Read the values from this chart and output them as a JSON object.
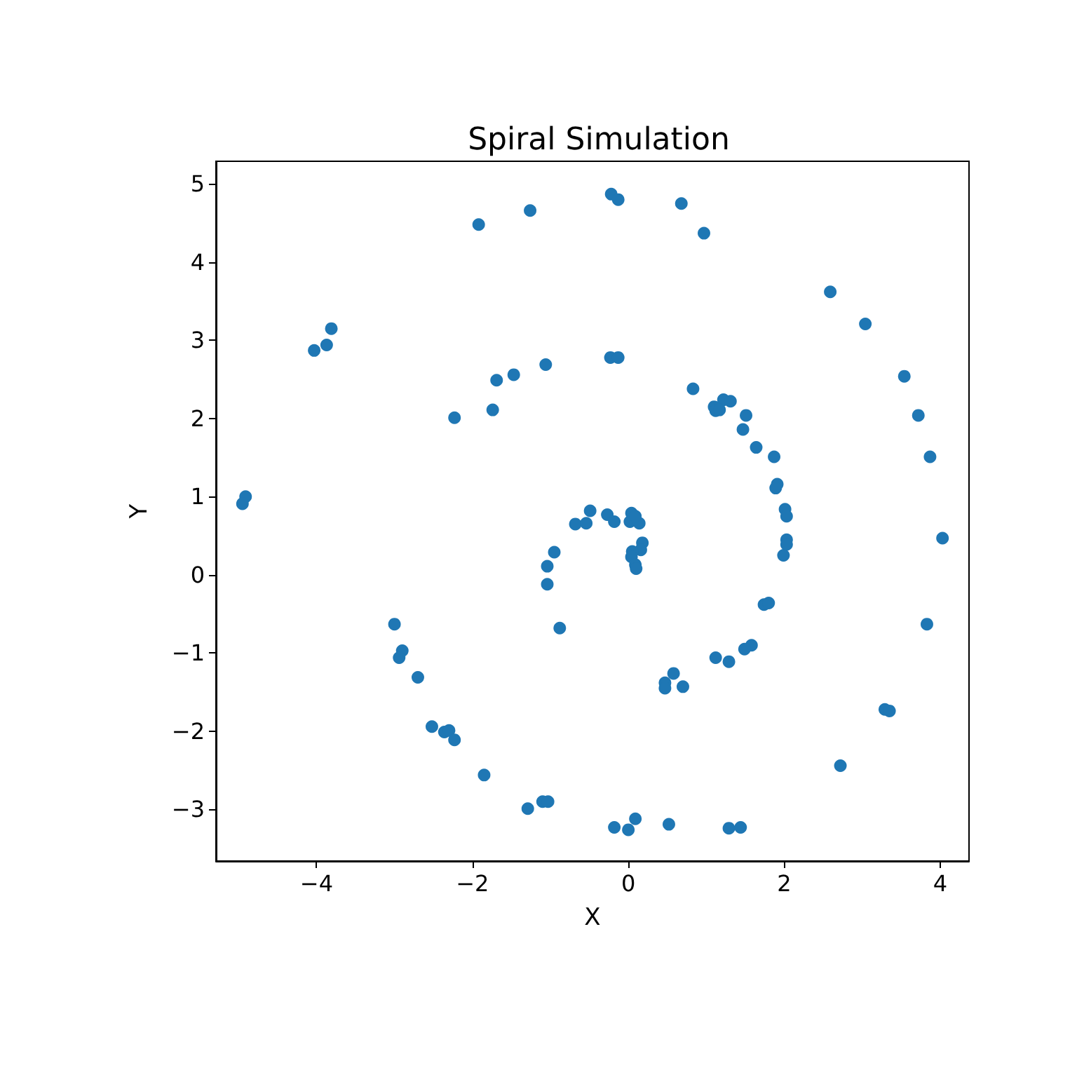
{
  "chart_data": {
    "type": "scatter",
    "title": "Spiral Simulation",
    "xlabel": "X",
    "ylabel": "Y",
    "xlim": [
      -5.29,
      4.37
    ],
    "ylim": [
      -3.66,
      5.29
    ],
    "xticks": [
      -4,
      -2,
      0,
      2,
      4
    ],
    "yticks": [
      -3,
      -2,
      -1,
      0,
      1,
      2,
      3,
      4,
      5
    ],
    "grid": false,
    "marker": "circle",
    "series": [
      {
        "color": "#1f77b4",
        "x": [
          -0.22,
          -0.13,
          -1.26,
          -1.92,
          0.68,
          0.97,
          2.59,
          3.04,
          3.54,
          3.72,
          3.87,
          4.03,
          3.83,
          3.29,
          3.35,
          2.72,
          -3.81,
          -3.87,
          -4.03,
          -4.91,
          -4.95,
          -3.0,
          -2.9,
          -2.94,
          -2.7,
          -2.52,
          -2.36,
          -2.3,
          -2.23,
          -1.85,
          -1.29,
          -1.1,
          -1.03,
          -0.18,
          0.0,
          0.09,
          0.52,
          1.29,
          1.44,
          -0.23,
          -0.13,
          -1.06,
          -1.47,
          -1.69,
          -1.74,
          -2.23,
          0.83,
          1.22,
          1.31,
          1.1,
          1.12,
          1.17,
          1.51,
          1.47,
          1.64,
          1.87,
          1.91,
          1.89,
          2.01,
          2.03,
          2.03,
          2.03,
          1.99,
          1.74,
          1.8,
          1.58,
          1.49,
          1.12,
          1.29,
          0.58,
          0.47,
          0.47,
          0.7,
          -0.88,
          -1.04,
          -1.04,
          -0.95,
          -0.68,
          -0.54,
          -0.49,
          -0.27,
          -0.18,
          0.04,
          0.02,
          0.14,
          0.09,
          0.18,
          0.16,
          0.05,
          0.04,
          0.09,
          0.1
        ],
        "values": [
          4.87,
          4.8,
          4.66,
          4.48,
          4.75,
          4.37,
          3.62,
          3.21,
          2.54,
          2.04,
          1.51,
          0.47,
          -0.63,
          -1.72,
          -1.74,
          -2.44,
          3.15,
          2.94,
          2.87,
          1.0,
          0.91,
          -0.63,
          -0.97,
          -1.06,
          -1.31,
          -1.94,
          -2.01,
          -1.99,
          -2.11,
          -2.56,
          -2.99,
          -2.9,
          -2.9,
          -3.23,
          -3.26,
          -3.12,
          -3.19,
          -3.24,
          -3.23,
          2.78,
          2.78,
          2.69,
          2.56,
          2.49,
          2.11,
          2.01,
          2.38,
          2.24,
          2.22,
          2.15,
          2.1,
          2.11,
          2.04,
          1.86,
          1.63,
          1.51,
          1.16,
          1.11,
          0.84,
          0.75,
          0.45,
          0.39,
          0.25,
          -0.38,
          -0.36,
          -0.9,
          -0.95,
          -1.06,
          -1.11,
          -1.26,
          -1.38,
          -1.45,
          -1.43,
          -0.68,
          0.11,
          -0.12,
          0.29,
          0.65,
          0.66,
          0.82,
          0.77,
          0.68,
          0.79,
          0.68,
          0.66,
          0.75,
          0.41,
          0.32,
          0.3,
          0.23,
          0.13,
          0.08
        ]
      }
    ]
  }
}
